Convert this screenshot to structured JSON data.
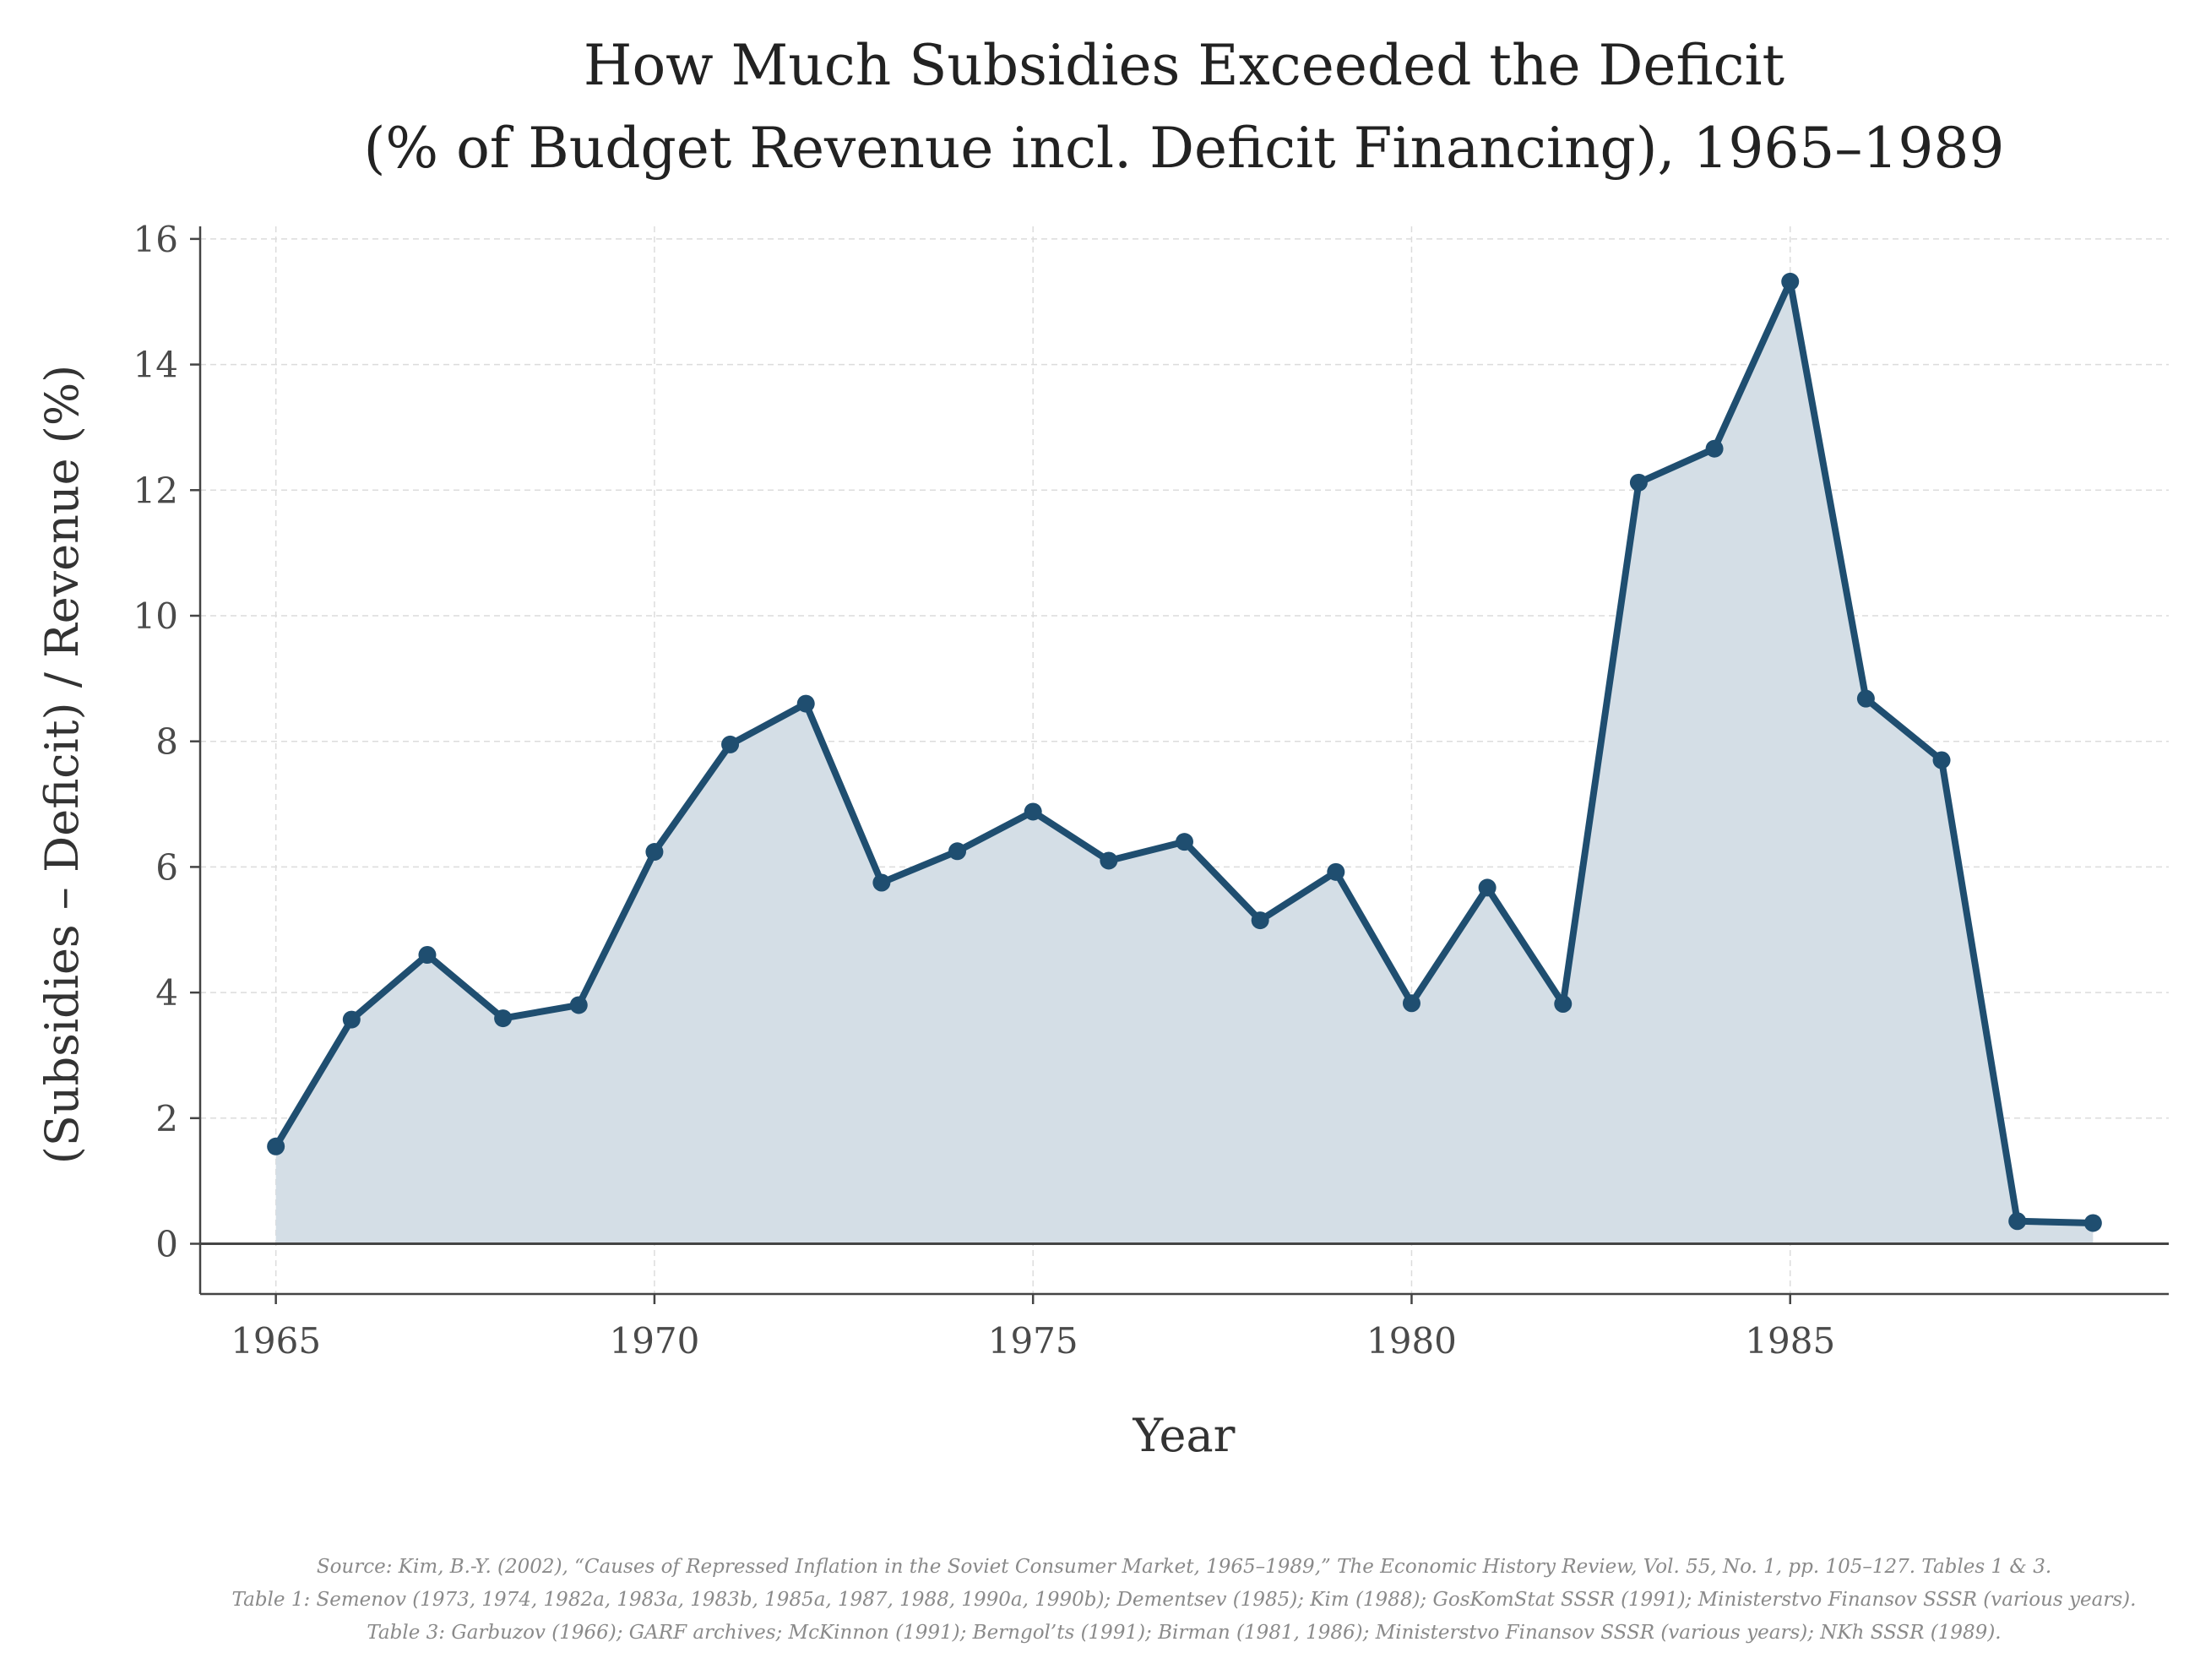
{
  "chart_data": {
    "type": "area",
    "title_lines": [
      "How Much Subsidies Exceeded the Deficit",
      "(% of Budget Revenue incl. Deficit Financing), 1965–1989"
    ],
    "xlabel": "Year",
    "ylabel": "(Subsidies – Deficit) / Revenue (%)",
    "x": [
      1965,
      1966,
      1967,
      1968,
      1969,
      1970,
      1971,
      1972,
      1973,
      1974,
      1975,
      1976,
      1977,
      1978,
      1979,
      1980,
      1981,
      1982,
      1983,
      1984,
      1985,
      1986,
      1987,
      1988,
      1989
    ],
    "series": [
      {
        "name": "(Subsidies – Deficit) / Revenue (%)",
        "values": [
          1.55,
          3.57,
          4.6,
          3.59,
          3.8,
          6.24,
          7.95,
          8.6,
          5.75,
          6.25,
          6.88,
          6.1,
          6.4,
          5.15,
          5.92,
          3.83,
          5.67,
          3.82,
          12.12,
          12.66,
          15.32,
          8.68,
          7.7,
          0.36,
          0.33
        ],
        "color": "#1f4e70"
      }
    ],
    "fill_color": "#d4dee6",
    "xlim": [
      1964,
      1990
    ],
    "ylim": [
      -0.8,
      16.2
    ],
    "x_ticks": [
      "1965",
      "1970",
      "1975",
      "1980",
      "1985"
    ],
    "y_ticks": [
      "0",
      "2",
      "4",
      "6",
      "8",
      "10",
      "12",
      "14",
      "16"
    ],
    "grid": true,
    "source_lines": [
      "Source: Kim, B.-Y. (2002), “Causes of Repressed Inflation in the Soviet Consumer Market, 1965–1989,” The Economic History Review, Vol. 55, No. 1, pp. 105–127. Tables 1 & 3.",
      "Table 1: Semenov (1973, 1974, 1982a, 1983a, 1983b, 1985a, 1987, 1988, 1990a, 1990b); Dementsev (1985); Kim (1988); GosKomStat SSSR (1991); Ministerstvo Finansov SSSR (various years).",
      "Table 3: Garbuzov (1966); GARF archives; McKinnon (1991); Berngol’ts (1991); Birman (1981, 1986); Ministerstvo Finansov SSSR (various years); NKh SSSR (1989)."
    ]
  }
}
